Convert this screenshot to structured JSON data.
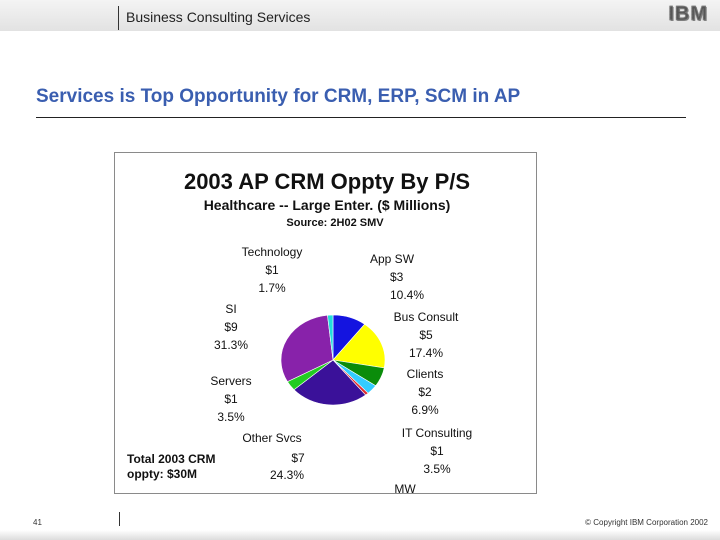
{
  "header": {
    "title": "Business Consulting Services",
    "logo_text": "IBM"
  },
  "slide": {
    "title": "Services is Top Opportunity for CRM, ERP, SCM in AP"
  },
  "footer": {
    "page_number": "41",
    "copyright": "© Copyright IBM Corporation 2002"
  },
  "chart_data": {
    "type": "pie",
    "title": "2003 AP CRM Oppty By P/S",
    "subtitle": "Healthcare -- Large Enter.  ($ Millions)",
    "source": "Source: 2H02 SMV",
    "total_note_line1": "Total 2003 CRM",
    "total_note_line2": "oppty: $30M",
    "slices": [
      {
        "name": "App SW",
        "value": "$3",
        "percent": "10.4%",
        "pct": 10.4,
        "color": "#1414e0"
      },
      {
        "name": "Bus Consult",
        "value": "$5",
        "percent": "17.4%",
        "pct": 17.4,
        "color": "#ffff00"
      },
      {
        "name": "Clients",
        "value": "$2",
        "percent": "6.9%",
        "pct": 6.9,
        "color": "#0a8c0a"
      },
      {
        "name": "IT Consulting",
        "value": "$1",
        "percent": "3.5%",
        "pct": 3.5,
        "color": "#33ccff"
      },
      {
        "name": "MW",
        "value": "",
        "percent": "",
        "pct": 1.0,
        "color": "#e03030"
      },
      {
        "name": "Other Svcs",
        "value": "$7",
        "percent": "24.3%",
        "pct": 24.3,
        "color": "#3a1199"
      },
      {
        "name": "Servers",
        "value": "$1",
        "percent": "3.5%",
        "pct": 3.5,
        "color": "#22cc22"
      },
      {
        "name": "SI",
        "value": "$9",
        "percent": "31.3%",
        "pct": 31.3,
        "color": "#8822aa"
      },
      {
        "name": "Technology",
        "value": "$1",
        "percent": "1.7%",
        "pct": 1.7,
        "color": "#22dddd"
      }
    ]
  }
}
